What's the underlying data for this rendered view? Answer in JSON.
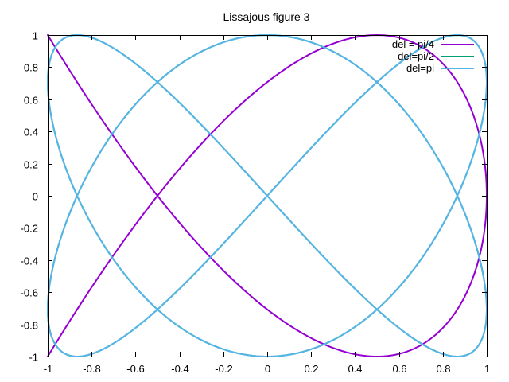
{
  "chart_data": {
    "type": "line",
    "title": "Lissajous figure 3",
    "xlabel": "",
    "ylabel": "",
    "xlim": [
      -1,
      1
    ],
    "ylim": [
      -1,
      1
    ],
    "x_ticks": [
      -1,
      -0.8,
      -0.6,
      -0.4,
      -0.2,
      0,
      0.2,
      0.4,
      0.6,
      0.8,
      1
    ],
    "y_ticks": [
      -1,
      -0.8,
      -0.6,
      -0.4,
      -0.2,
      0,
      0.2,
      0.4,
      0.6,
      0.8,
      1
    ],
    "x_tick_labels": [
      "-1",
      "-0.8",
      "-0.6",
      "-0.4",
      "-0.2",
      "0",
      "0.2",
      "0.4",
      "0.6",
      "0.8",
      "1"
    ],
    "y_tick_labels": [
      "-1",
      "-0.8",
      "-0.6",
      "-0.4",
      "-0.2",
      "0",
      "0.2",
      "0.4",
      "0.6",
      "0.8",
      "1"
    ],
    "grid": false,
    "legend_position": "top-right",
    "parametric": {
      "x": "sin(2t)",
      "y": "sin(3t + del)"
    },
    "series": [
      {
        "name": "del = pi/4",
        "color": "#9400d3",
        "del": 0.7853981634
      },
      {
        "name": "del=pi/2",
        "color": "#009e73",
        "del": 1.5707963268
      },
      {
        "name": "del=pi",
        "color": "#56b4e9",
        "del": 3.1415926536
      }
    ]
  }
}
